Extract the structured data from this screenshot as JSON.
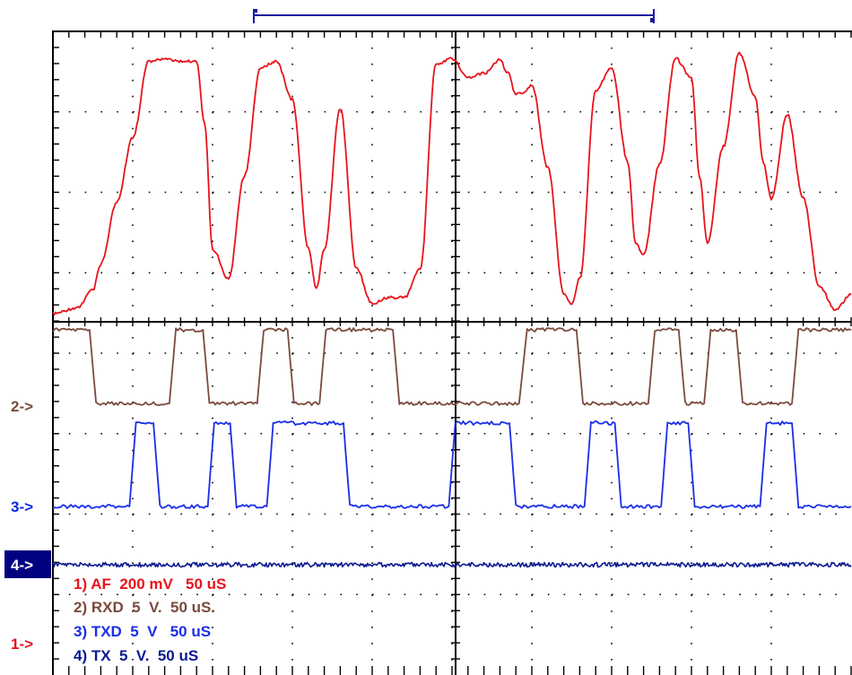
{
  "chart_data": {
    "type": "line",
    "title": "",
    "xlabel": "",
    "ylabel": "",
    "grid": true,
    "time_divisions": 10,
    "time_per_div_us": 50,
    "x_unit": "uS",
    "markers": [
      {
        "label": "2->",
        "channel": 2,
        "color": "#7b4a3e"
      },
      {
        "label": "3->",
        "channel": 3,
        "color": "#0a28e0"
      },
      {
        "label": "4->",
        "channel": 4,
        "color": "#ffffff",
        "background": "#000080"
      },
      {
        "label": "1->",
        "channel": 1,
        "color": "#e0141c"
      }
    ],
    "legend": [
      {
        "text": "1) AF  200 mV   50 uS",
        "color": "#e8141c"
      },
      {
        "text": "2) RXD  5  V.  50 uS.",
        "color": "#7b4a3e"
      },
      {
        "text": "3) TXD  5  V   50 uS",
        "color": "#1a2ee8"
      },
      {
        "text": "4) TX  5  V.  50 uS",
        "color": "#0a1a90"
      }
    ],
    "series": [
      {
        "name": "1) AF  200 mV   50 uS",
        "color": "#e8141c",
        "unit": "mV",
        "x": [
          0,
          3,
          5,
          6,
          8,
          10,
          12,
          14,
          16,
          18,
          19,
          20,
          22,
          24,
          26,
          28,
          30,
          32,
          33,
          34,
          36,
          38,
          40,
          42,
          44,
          46,
          48,
          50,
          52,
          54,
          56,
          57,
          58,
          59,
          60,
          62,
          64,
          65,
          66,
          68,
          70,
          72,
          73,
          74,
          76,
          78,
          80,
          81,
          82,
          84,
          86,
          88,
          89,
          90,
          92,
          94,
          96,
          98,
          100
        ],
        "values": [
          -1760,
          -1720,
          -1600,
          -1420,
          -1000,
          -560,
          -40,
          -20,
          -40,
          -40,
          -460,
          -1320,
          -1520,
          -820,
          -80,
          -40,
          -300,
          -1310,
          -1590,
          -1320,
          -360,
          -1450,
          -1690,
          -1650,
          -1650,
          -1460,
          -60,
          -20,
          -150,
          -120,
          -30,
          -120,
          -260,
          -260,
          -200,
          -760,
          -1620,
          -1700,
          -1520,
          -240,
          -80,
          -720,
          -1280,
          -1360,
          -740,
          -20,
          -150,
          -820,
          -1280,
          -620,
          20,
          -280,
          -730,
          -980,
          -400,
          -970,
          -1570,
          -1730,
          -1630
        ]
      },
      {
        "name": "2) RXD  5  V.  50 uS.",
        "color": "#7b4a3e",
        "unit": "V",
        "x": [
          0,
          4.6,
          5.4,
          14.6,
          15.4,
          18.8,
          19.6,
          25.6,
          26.4,
          29.4,
          30.2,
          33.4,
          34.2,
          42.6,
          43.4,
          58.4,
          59.4,
          65.6,
          66.4,
          74.6,
          75.4,
          78.4,
          79.2,
          81.6,
          82.4,
          85.6,
          86.4,
          92.6,
          93.4,
          100
        ],
        "values": [
          5,
          5,
          0,
          0,
          5,
          5,
          0,
          0,
          5,
          5,
          0,
          0,
          5,
          5,
          0,
          0,
          5,
          5,
          0,
          0,
          5,
          5,
          0,
          0,
          5,
          5,
          0,
          0,
          5,
          5
        ]
      },
      {
        "name": "3) TXD  5  V   50 uS",
        "color": "#1a2ee8",
        "unit": "V",
        "x": [
          0,
          9.6,
          10.4,
          12.6,
          13.4,
          19.4,
          20.2,
          22.2,
          23.0,
          26.8,
          27.6,
          36.4,
          37.2,
          49.6,
          50.4,
          57.2,
          58.0,
          66.6,
          67.4,
          70.4,
          71.2,
          76.2,
          77.0,
          79.6,
          80.4,
          88.6,
          89.4,
          92.6,
          93.4,
          100
        ],
        "values": [
          0,
          0,
          5,
          5,
          0,
          0,
          5,
          5,
          0,
          0,
          5,
          5,
          0,
          0,
          5,
          5,
          0,
          0,
          5,
          5,
          0,
          0,
          5,
          5,
          0,
          0,
          5,
          5,
          0,
          0
        ]
      },
      {
        "name": "4) TX  5  V.  50 uS",
        "color": "#0a1a90",
        "unit": "V",
        "x": [
          0,
          100
        ],
        "values": [
          0,
          0
        ]
      }
    ]
  }
}
